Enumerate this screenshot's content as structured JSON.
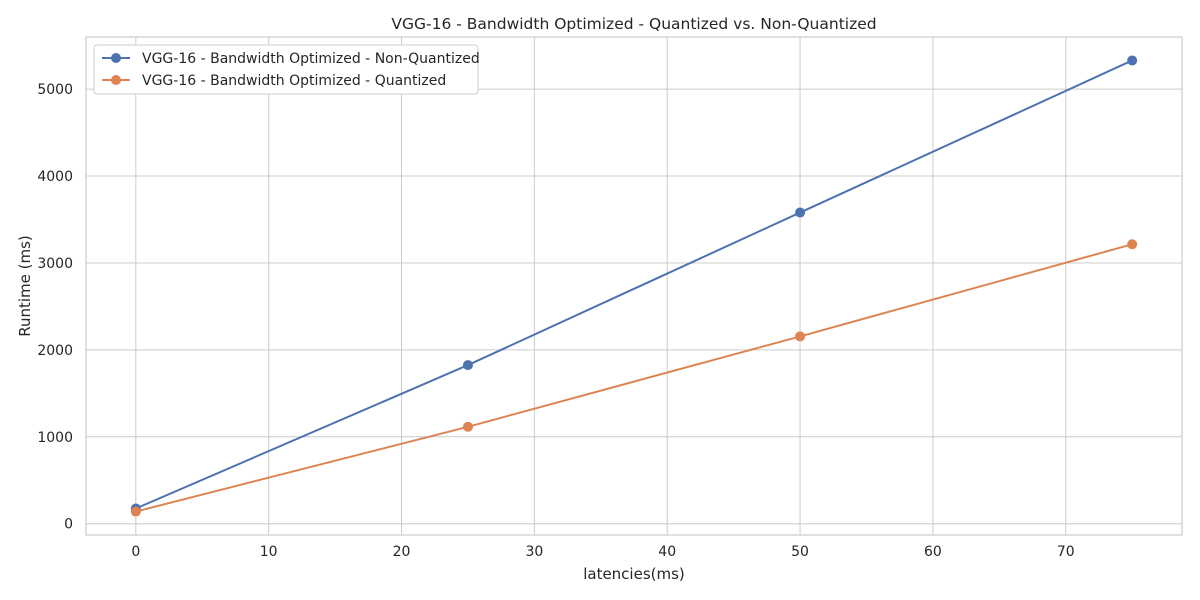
{
  "chart_data": {
    "type": "line",
    "title": "VGG-16 - Bandwidth Optimized - Quantized vs. Non-Quantized",
    "xlabel": "latencies(ms)",
    "ylabel": "Runtime (ms)",
    "xlim": [
      -3.75,
      78.75
    ],
    "ylim": [
      -130,
      5600
    ],
    "xticks": [
      0,
      10,
      20,
      30,
      40,
      50,
      60,
      70
    ],
    "yticks": [
      0,
      1000,
      2000,
      3000,
      4000,
      5000
    ],
    "grid": true,
    "legend_position": "top-left",
    "series": [
      {
        "name": "VGG-16 - Bandwidth Optimized - Non-Quantized",
        "color": "#4c72b0",
        "marker": "circle",
        "x": [
          0,
          25,
          50,
          75
        ],
        "y": [
          175,
          1825,
          3580,
          5330
        ]
      },
      {
        "name": "VGG-16 - Bandwidth Optimized - Quantized",
        "color": "#dd8452",
        "marker": "circle",
        "x": [
          0,
          25,
          50,
          75
        ],
        "y": [
          140,
          1115,
          2155,
          3215
        ]
      }
    ]
  }
}
